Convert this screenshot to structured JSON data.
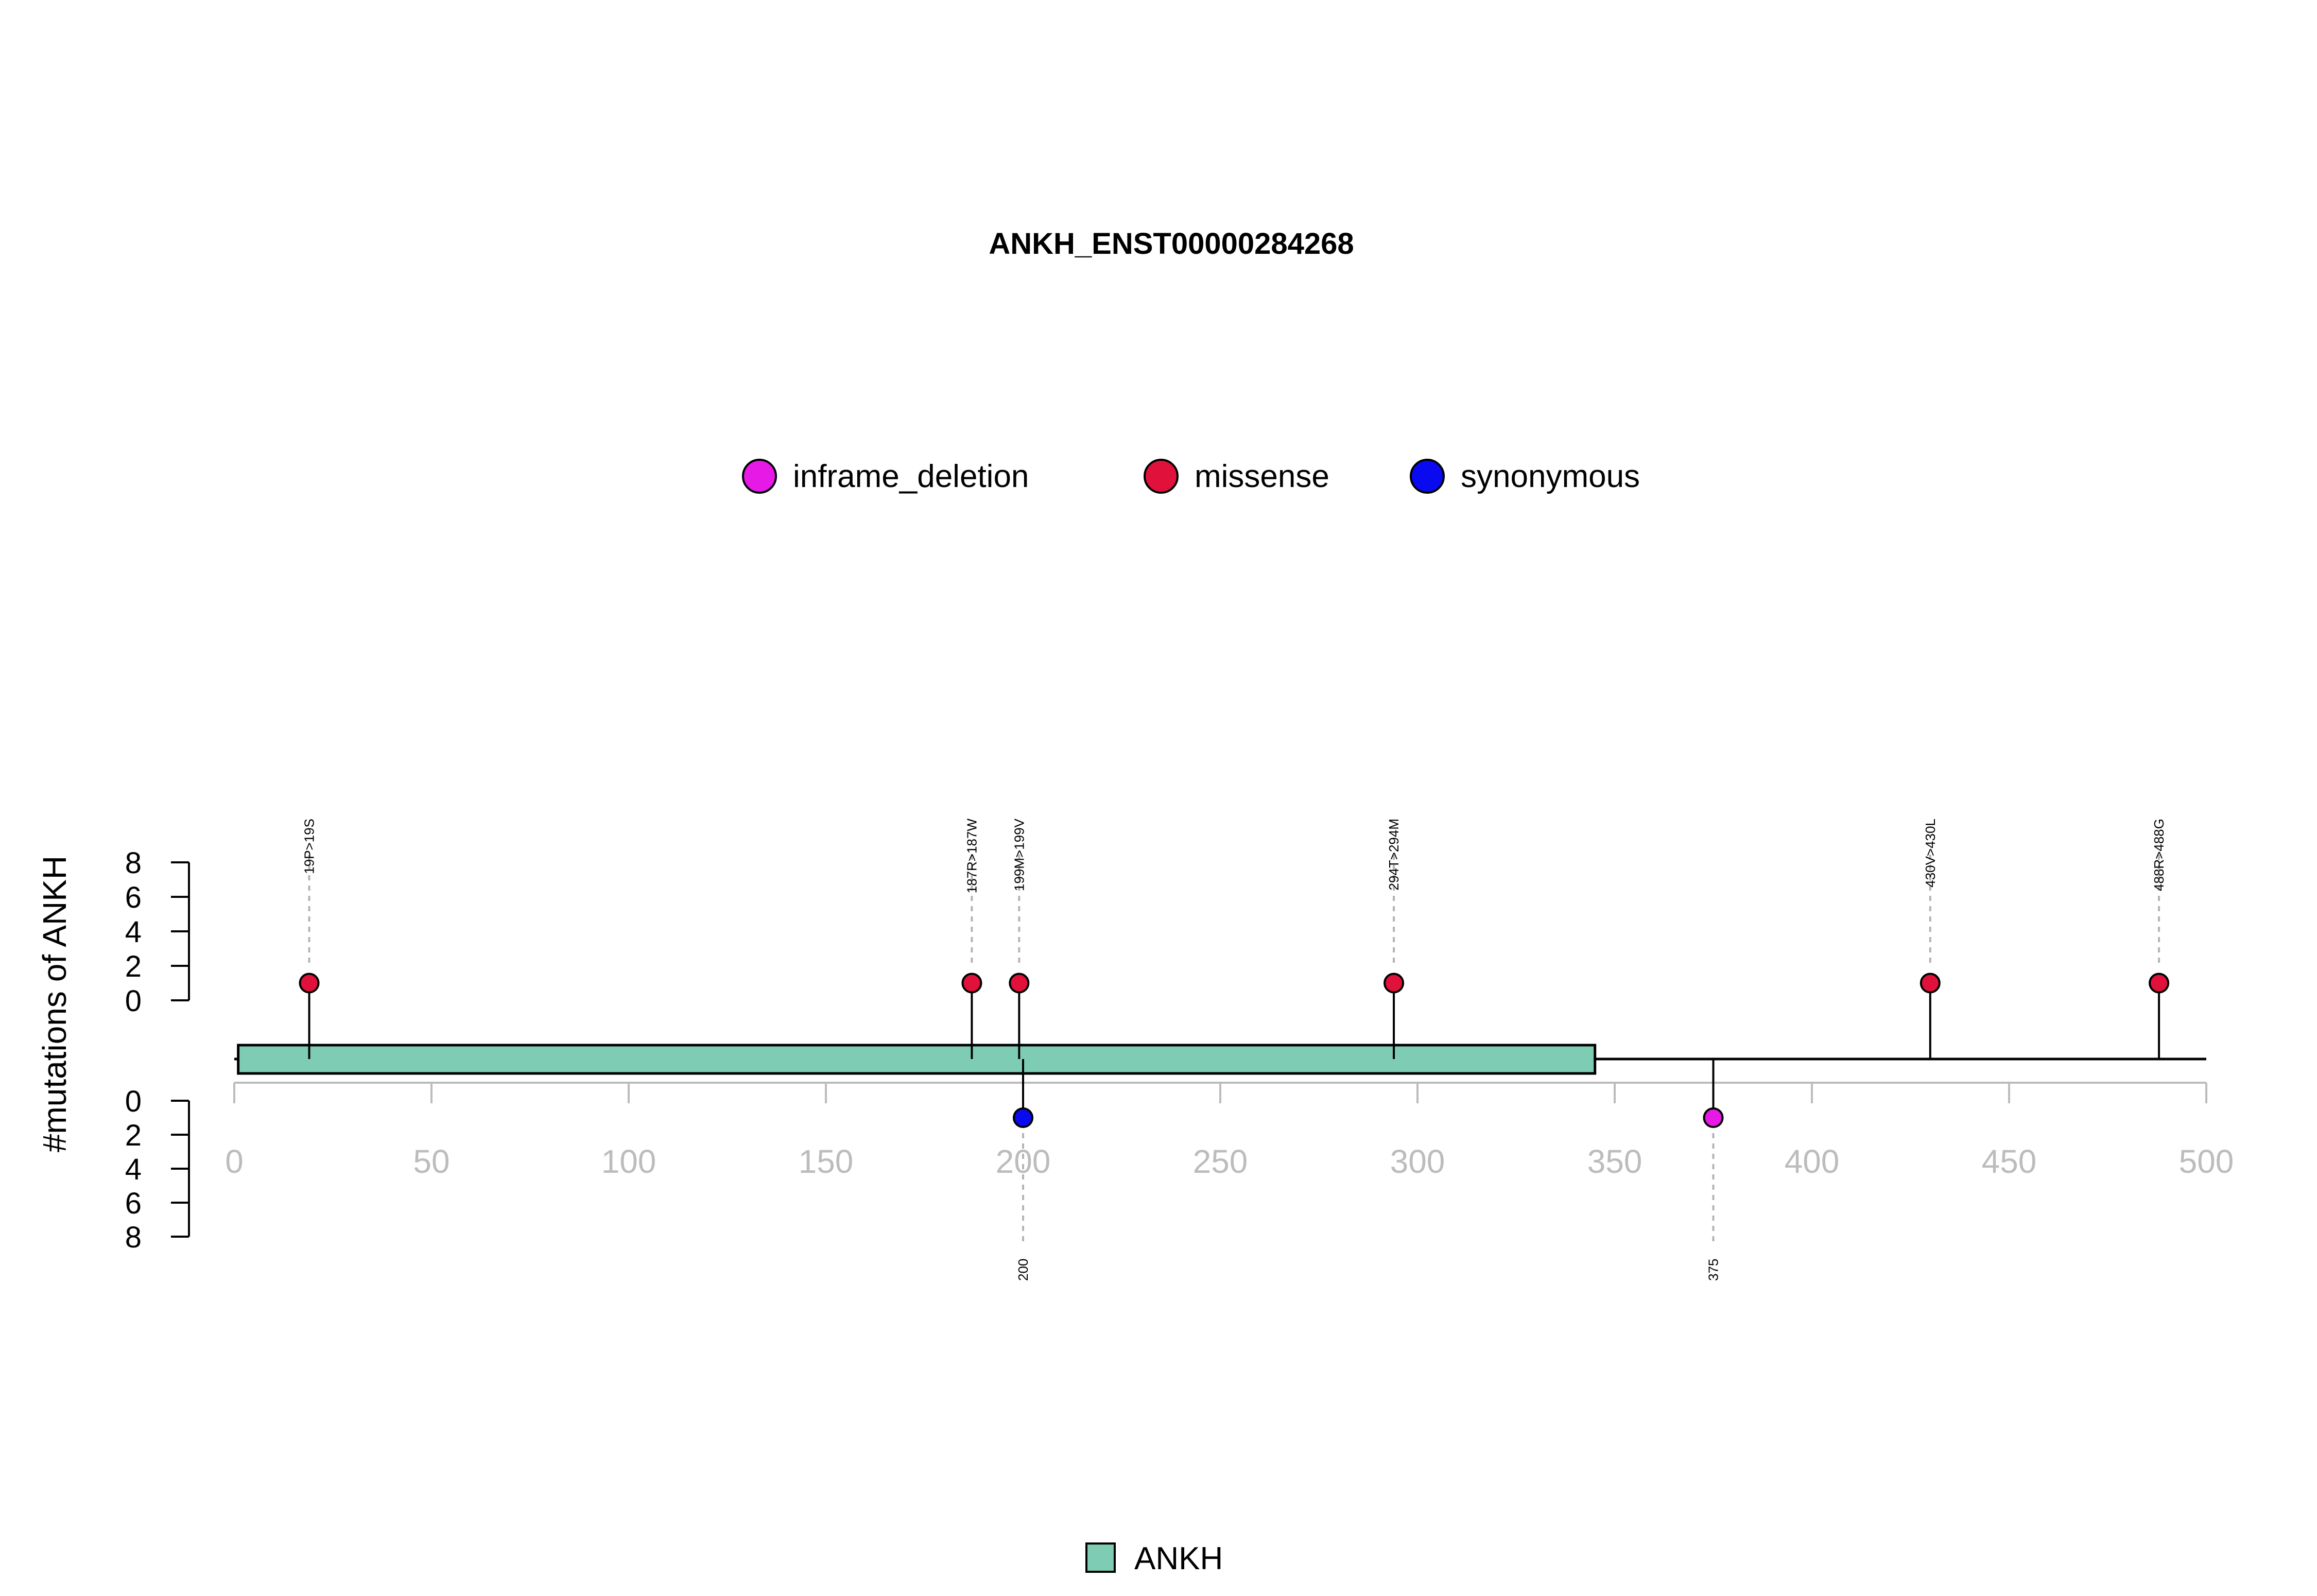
{
  "chart_data": {
    "type": "lollipop",
    "title": "ANKH_ENST00000284268",
    "ylabel": "#mutations of ANKH",
    "xlim": [
      0,
      500
    ],
    "x_ticks": [
      "0",
      "50",
      "100",
      "150",
      "200",
      "250",
      "300",
      "350",
      "400",
      "450",
      "500"
    ],
    "y_ticks": [
      "0",
      "2",
      "4",
      "6",
      "8"
    ],
    "ylim": [
      0,
      8
    ],
    "mutation_legend": [
      {
        "label": "inframe_deletion",
        "color": "#e619e6"
      },
      {
        "label": "missense",
        "color": "#e0113a"
      },
      {
        "label": "synonymous",
        "color": "#0a0af0"
      }
    ],
    "domain_legend": [
      {
        "label": "ANKH",
        "color": "#7fccb5"
      }
    ],
    "domains": [
      {
        "name": "ANKH",
        "start": 1,
        "end": 345,
        "color": "#7fccb5"
      }
    ],
    "protein_length": 500,
    "mutations_top": [
      {
        "position": 19,
        "label": "19P>19S",
        "count": 1,
        "type": "missense",
        "color": "#e0113a"
      },
      {
        "position": 187,
        "label": "187R>187W",
        "count": 1,
        "type": "missense",
        "color": "#e0113a"
      },
      {
        "position": 199,
        "label": "199M>199V",
        "count": 1,
        "type": "missense",
        "color": "#e0113a"
      },
      {
        "position": 294,
        "label": "294T>294M",
        "count": 1,
        "type": "missense",
        "color": "#e0113a"
      },
      {
        "position": 430,
        "label": "430V>430L",
        "count": 1,
        "type": "missense",
        "color": "#e0113a"
      },
      {
        "position": 488,
        "label": "488R>488G",
        "count": 1,
        "type": "missense",
        "color": "#e0113a"
      }
    ],
    "mutations_bottom": [
      {
        "position": 200,
        "label": "200",
        "count": 1,
        "type": "synonymous",
        "color": "#0a0af0"
      },
      {
        "position": 375,
        "label": "375",
        "count": 1,
        "type": "inframe_deletion",
        "color": "#e619e6"
      }
    ]
  }
}
